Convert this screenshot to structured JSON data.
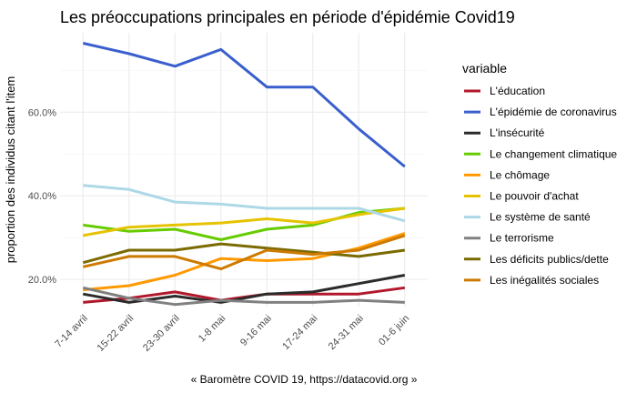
{
  "chart_data": {
    "type": "line",
    "title": "Les préoccupations principales en période d'épidémie Covid19",
    "xlabel": "",
    "ylabel": "proportion des individus citant l'item",
    "caption": "« Baromètre COVID 19, https://datacovid.org »",
    "legend_title": "variable",
    "legend_position": "right",
    "grid": true,
    "ylim": [
      13.5,
      79
    ],
    "y_ticks": [
      20,
      40,
      60
    ],
    "y_tick_labels": [
      "20.0%",
      "40.0%",
      "60.0%"
    ],
    "categories": [
      "7-14 avril",
      "15-22 avril",
      "23-30 avril",
      "1-8 mai",
      "9-16 mai",
      "17-24 mai",
      "24-31 mai",
      "01-6 juin"
    ],
    "series": [
      {
        "name": "L'éducation",
        "color": "#b2182b",
        "values": [
          14.5,
          15.5,
          17.0,
          15.0,
          16.5,
          16.5,
          16.5,
          18.0
        ]
      },
      {
        "name": "L'épidémie de coronavirus",
        "color": "#3a5fcd",
        "values": [
          76.5,
          74.0,
          71.0,
          75.0,
          66.0,
          66.0,
          56.0,
          47.0
        ]
      },
      {
        "name": "L'insécurité",
        "color": "#2b2b2b",
        "values": [
          16.5,
          14.5,
          16.0,
          14.5,
          16.5,
          17.0,
          19.0,
          21.0
        ]
      },
      {
        "name": "Le changement climatique",
        "color": "#66cc00",
        "values": [
          33.0,
          31.5,
          32.0,
          29.5,
          32.0,
          33.0,
          36.0,
          37.0
        ]
      },
      {
        "name": "Le chômage",
        "color": "#ff9900",
        "values": [
          17.5,
          18.5,
          21.0,
          25.0,
          24.5,
          25.0,
          27.5,
          31.0
        ]
      },
      {
        "name": "Le pouvoir d'achat",
        "color": "#e6c300",
        "values": [
          30.5,
          32.5,
          33.0,
          33.5,
          34.5,
          33.5,
          35.5,
          37.0
        ]
      },
      {
        "name": "Le système de santé",
        "color": "#add8e6",
        "values": [
          42.5,
          41.5,
          38.5,
          38.0,
          37.0,
          37.0,
          37.0,
          34.0
        ]
      },
      {
        "name": "Le terrorisme",
        "color": "#808080",
        "values": [
          18.0,
          15.5,
          14.0,
          15.0,
          14.5,
          14.5,
          15.0,
          14.5
        ]
      },
      {
        "name": "Les déficits publics/dette",
        "color": "#7a6a00",
        "values": [
          24.0,
          27.0,
          27.0,
          28.5,
          27.5,
          26.5,
          25.5,
          27.0
        ]
      },
      {
        "name": "Les inégalités sociales",
        "color": "#cc7a00",
        "values": [
          23.0,
          25.5,
          25.5,
          22.5,
          27.0,
          26.0,
          27.0,
          30.5
        ]
      }
    ]
  }
}
